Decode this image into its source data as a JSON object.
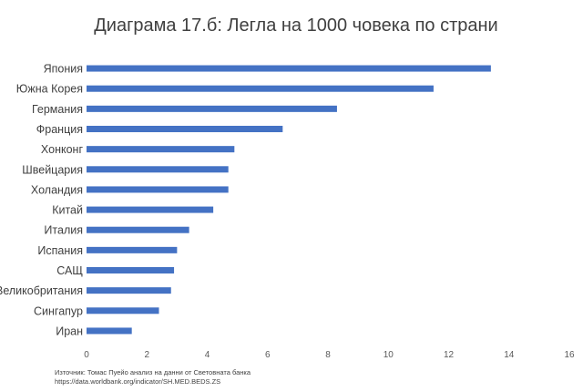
{
  "chart_data": {
    "type": "bar",
    "orientation": "horizontal",
    "title": "Диаграма 17.б: Легла на 1000 човека по страни",
    "categories": [
      "Япония",
      "Южна Корея",
      "Германия",
      "Франция",
      "Хонконг",
      "Швейцария",
      "Холандия",
      "Китай",
      "Италия",
      "Испания",
      "САЩ",
      "Великобритания",
      "Сингапур",
      "Иран"
    ],
    "values": [
      13.4,
      11.5,
      8.3,
      6.5,
      4.9,
      4.7,
      4.7,
      4.2,
      3.4,
      3.0,
      2.9,
      2.8,
      2.4,
      1.5
    ],
    "xlim": [
      0,
      16
    ],
    "xticks": [
      "0",
      "2",
      "4",
      "6",
      "8",
      "10",
      "12",
      "14",
      "16"
    ],
    "xlabel": "",
    "ylabel": "",
    "bar_color": "#4472c4",
    "grid": false,
    "legend": "none"
  },
  "source": {
    "line1": "Източник: Томас Пуейо анализ на данни от Световната банка",
    "line2": "https://data.worldbank.org/indicator/SH.MED.BEDS.ZS"
  }
}
